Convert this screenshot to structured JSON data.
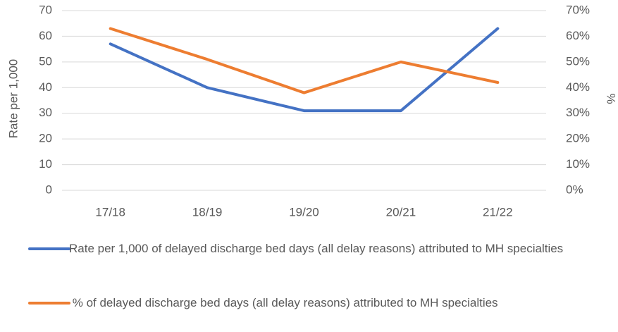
{
  "chart_data": {
    "type": "line",
    "y_label": "Rate per 1,000",
    "y2_label": "%",
    "categories": [
      "17/18",
      "18/19",
      "19/20",
      "20/21",
      "21/22"
    ],
    "series": [
      {
        "name": "Rate per 1,000 of delayed discharge bed days (all delay reasons) attributed to MH specialties",
        "color": "#4472c4",
        "values": [
          57,
          40,
          31,
          31,
          63
        ]
      },
      {
        "name": " % of delayed discharge bed days (all delay reasons) attributed to MH specialties",
        "color": "#ed7d31",
        "values": [
          63,
          51,
          38,
          50,
          42
        ],
        "axis": "y2"
      }
    ],
    "ylim": [
      0,
      70
    ],
    "yticks": [
      0,
      10,
      20,
      30,
      40,
      50,
      60,
      70
    ],
    "y2lim": [
      0,
      70
    ],
    "y2ticks": [
      {
        "value": 0,
        "label": "0%"
      },
      {
        "value": 10,
        "label": "10%"
      },
      {
        "value": 20,
        "label": "20%"
      },
      {
        "value": 30,
        "label": "30%"
      },
      {
        "value": 40,
        "label": "40%"
      },
      {
        "value": 50,
        "label": "50%"
      },
      {
        "value": 60,
        "label": "60%"
      },
      {
        "value": 70,
        "label": "70%"
      }
    ],
    "grid": true
  }
}
